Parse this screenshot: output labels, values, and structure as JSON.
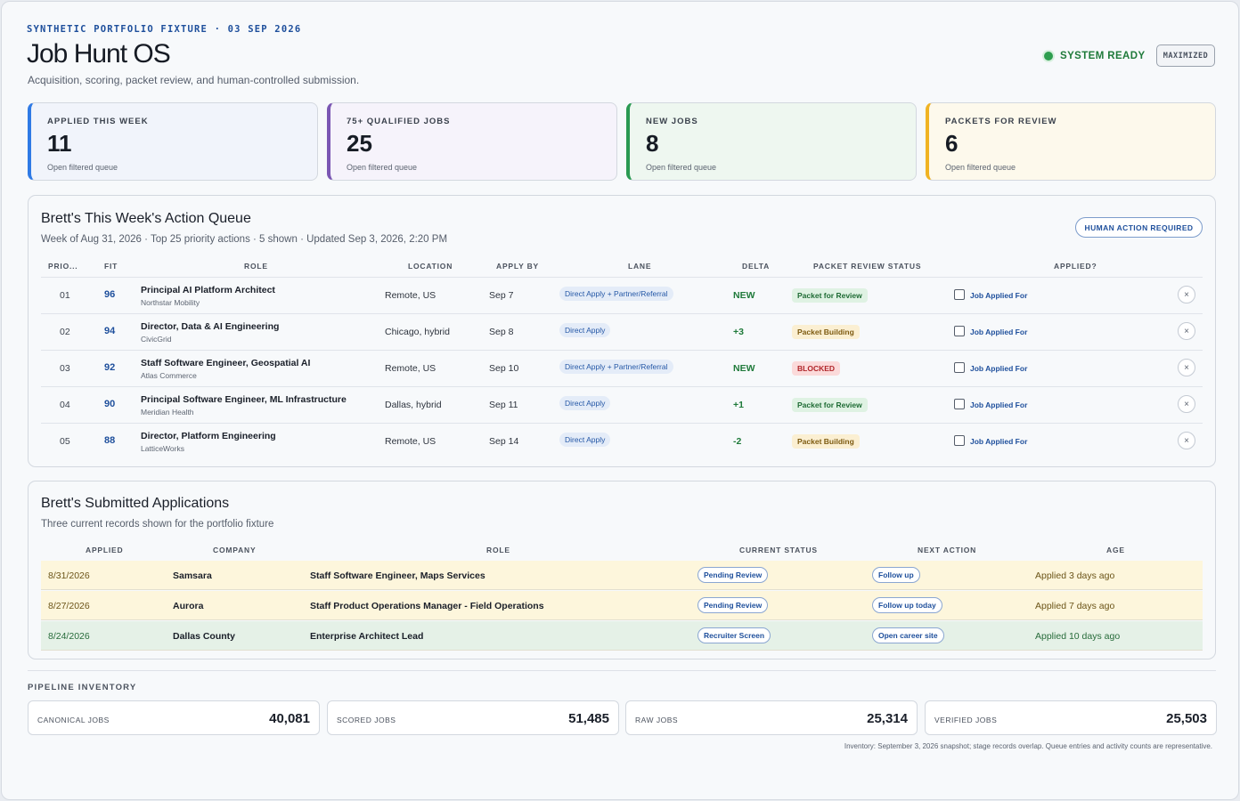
{
  "header": {
    "eyebrow": "SYNTHETIC PORTFOLIO FIXTURE · 03 SEP 2026",
    "title": "Job Hunt OS",
    "subtitle": "Acquisition, scoring, packet review, and human-controlled submission.",
    "system_status": "SYSTEM READY",
    "window_button": "MAXIMIZED"
  },
  "kpis": [
    {
      "label": "APPLIED THIS WEEK",
      "value": "11",
      "link": "Open filtered queue",
      "accent": "#2f7ae5",
      "bg": "#f1f4fb"
    },
    {
      "label": "75+ QUALIFIED JOBS",
      "value": "25",
      "link": "Open filtered queue",
      "accent": "#7b57b3",
      "bg": "#f6f3fb"
    },
    {
      "label": "NEW JOBS",
      "value": "8",
      "link": "Open filtered queue",
      "accent": "#2a9a52",
      "bg": "#eef7f0"
    },
    {
      "label": "PACKETS FOR REVIEW",
      "value": "6",
      "link": "Open filtered queue",
      "accent": "#f0b323",
      "bg": "#fdf9ec"
    }
  ],
  "queue": {
    "title": "Brett's This Week's Action Queue",
    "subtitle": "Week of Aug 31, 2026 · Top 25 priority actions · 5 shown · Updated Sep 3, 2026, 2:20 PM",
    "badge": "HUMAN ACTION REQUIRED",
    "columns": [
      "PRIO...",
      "FIT",
      "ROLE",
      "LOCATION",
      "APPLY BY",
      "LANE",
      "DELTA",
      "PACKET REVIEW STATUS",
      "APPLIED?"
    ],
    "rows": [
      {
        "rank": "01",
        "fit": "96",
        "role": "Principal AI Platform Architect",
        "company": "Northstar Mobility",
        "location": "Remote, US",
        "apply_by": "Sep 7",
        "lane": "Direct Apply + Partner/Referral",
        "delta": "NEW",
        "status": "Packet for Review",
        "status_kind": "review",
        "applied_label": "Job Applied For"
      },
      {
        "rank": "02",
        "fit": "94",
        "role": "Director, Data & AI Engineering",
        "company": "CivicGrid",
        "location": "Chicago, hybrid",
        "apply_by": "Sep 8",
        "lane": "Direct Apply",
        "delta": "+3",
        "status": "Packet Building",
        "status_kind": "build",
        "applied_label": "Job Applied For"
      },
      {
        "rank": "03",
        "fit": "92",
        "role": "Staff Software Engineer, Geospatial AI",
        "company": "Atlas Commerce",
        "location": "Remote, US",
        "apply_by": "Sep 10",
        "lane": "Direct Apply + Partner/Referral",
        "delta": "NEW",
        "status": "BLOCKED",
        "status_kind": "blocked",
        "applied_label": "Job Applied For"
      },
      {
        "rank": "04",
        "fit": "90",
        "role": "Principal Software Engineer, ML Infrastructure",
        "company": "Meridian Health",
        "location": "Dallas, hybrid",
        "apply_by": "Sep 11",
        "lane": "Direct Apply",
        "delta": "+1",
        "status": "Packet for Review",
        "status_kind": "review",
        "applied_label": "Job Applied For"
      },
      {
        "rank": "05",
        "fit": "88",
        "role": "Director, Platform Engineering",
        "company": "LatticeWorks",
        "location": "Remote, US",
        "apply_by": "Sep 14",
        "lane": "Direct Apply",
        "delta": "-2",
        "status": "Packet Building",
        "status_kind": "build",
        "applied_label": "Job Applied For"
      }
    ]
  },
  "submitted": {
    "title": "Brett's Submitted Applications",
    "subtitle": "Three current records shown for the portfolio fixture",
    "columns": [
      "APPLIED",
      "COMPANY",
      "ROLE",
      "CURRENT STATUS",
      "NEXT ACTION",
      "AGE"
    ],
    "rows": [
      {
        "applied": "8/31/2026",
        "company": "Samsara",
        "role": "Staff Software Engineer, Maps Services",
        "status": "Pending Review",
        "next_action": "Follow up",
        "age": "Applied 3 days ago",
        "tone": "yellow"
      },
      {
        "applied": "8/27/2026",
        "company": "Aurora",
        "role": "Staff Product Operations Manager - Field Operations",
        "status": "Pending Review",
        "next_action": "Follow up today",
        "age": "Applied 7 days ago",
        "tone": "yellow"
      },
      {
        "applied": "8/24/2026",
        "company": "Dallas County",
        "role": "Enterprise Architect Lead",
        "status": "Recruiter Screen",
        "next_action": "Open career site",
        "age": "Applied 10 days ago",
        "tone": "green"
      }
    ]
  },
  "inventory": {
    "label": "PIPELINE INVENTORY",
    "cards": [
      {
        "name": "CANONICAL JOBS",
        "value": "40,081"
      },
      {
        "name": "SCORED JOBS",
        "value": "51,485"
      },
      {
        "name": "RAW JOBS",
        "value": "25,314"
      },
      {
        "name": "VERIFIED JOBS",
        "value": "25,503"
      }
    ],
    "footnote": "Inventory: September 3, 2026 snapshot; stage records overlap. Queue entries and activity counts are representative."
  }
}
